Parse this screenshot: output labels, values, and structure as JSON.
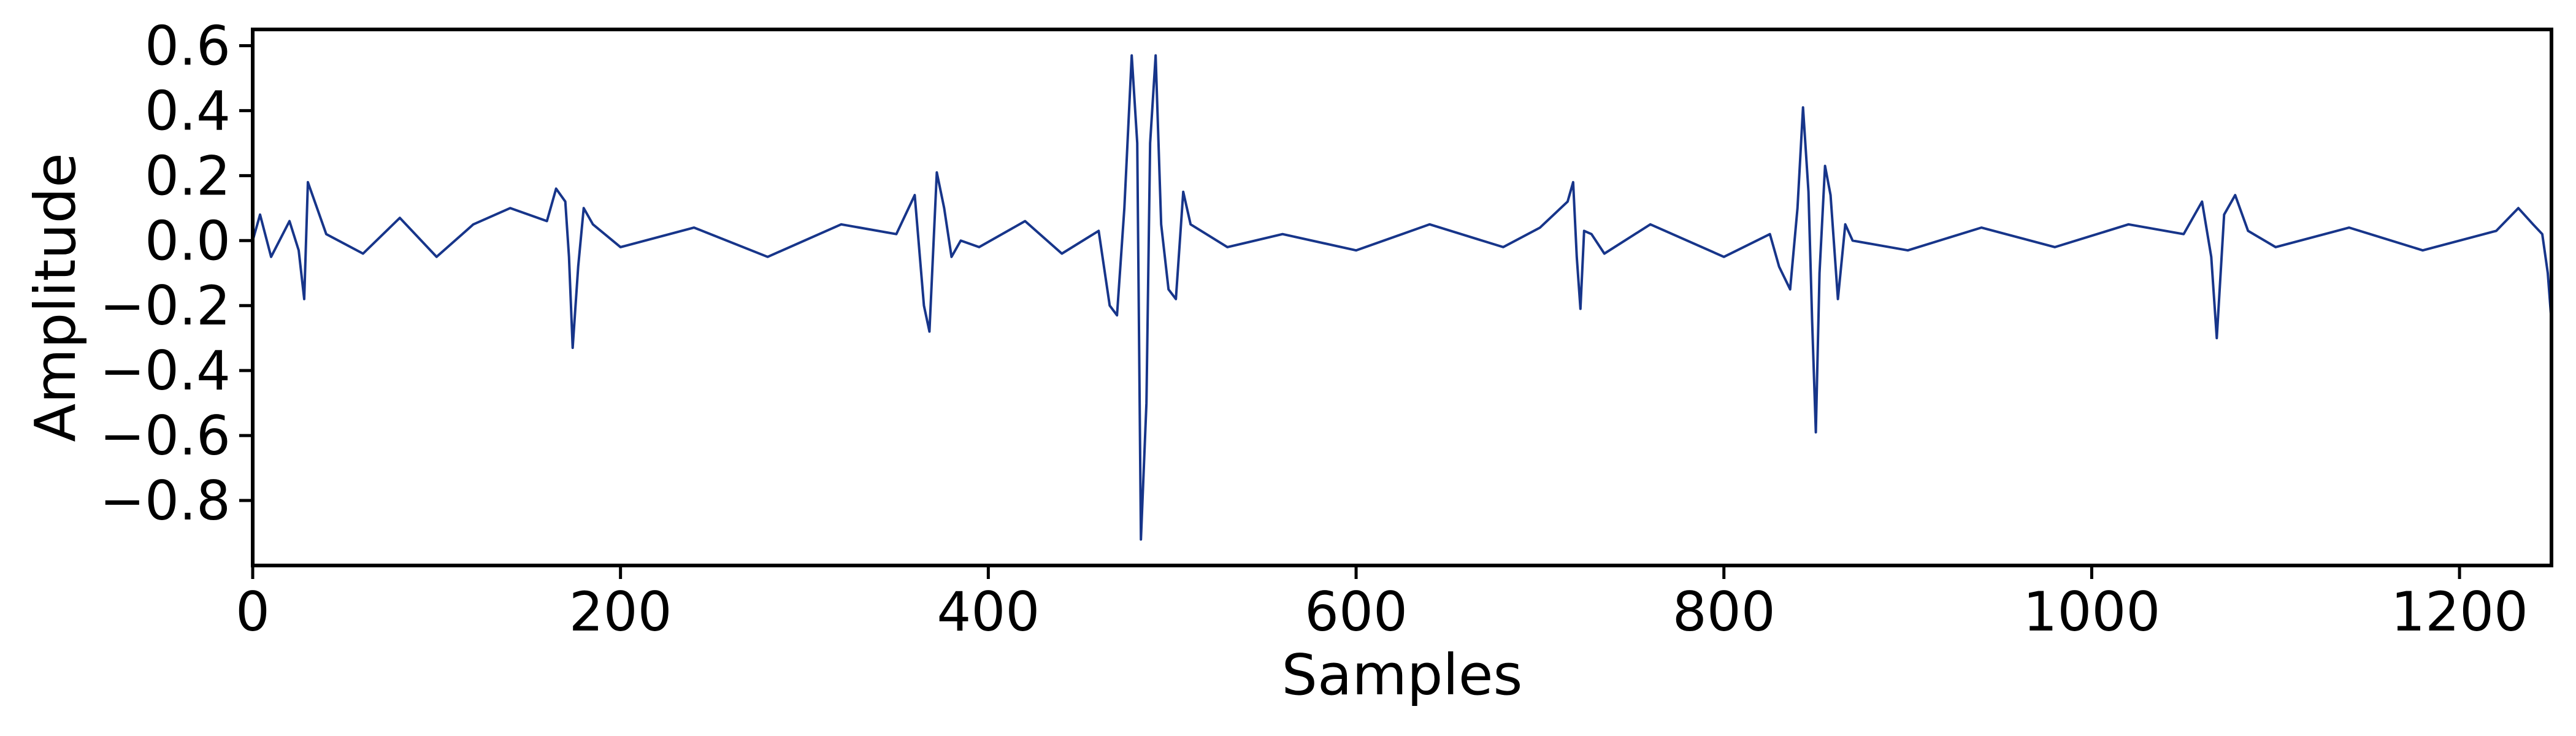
{
  "chart_data": {
    "type": "line",
    "title": "",
    "xlabel": "Samples",
    "ylabel": "Amplitude",
    "xlim": [
      0,
      1250
    ],
    "ylim": [
      -1.0,
      0.65
    ],
    "x_ticks": [
      0,
      200,
      400,
      600,
      800,
      1000,
      1200
    ],
    "x_tick_labels": [
      "0",
      "200",
      "400",
      "600",
      "800",
      "1000",
      "1200"
    ],
    "y_ticks": [
      0.6,
      0.4,
      0.2,
      0.0,
      -0.2,
      -0.4,
      -0.6,
      -0.8
    ],
    "y_tick_labels": [
      "0.6",
      "0.4",
      "0.2",
      "0.0",
      "−0.2",
      "−0.4",
      "−0.6",
      "−0.8"
    ],
    "grid": false,
    "legend": "none",
    "line_color": "#17358a",
    "series": [
      {
        "x": [
          0,
          4,
          10,
          20,
          25,
          28,
          30,
          40,
          60,
          80,
          100,
          120,
          140,
          160,
          165,
          170,
          172,
          174,
          177,
          180,
          185,
          200,
          240,
          280,
          320,
          350,
          360,
          365,
          368,
          372,
          376,
          380,
          385,
          395,
          420,
          440,
          460,
          466,
          470,
          474,
          478,
          481,
          483,
          486,
          488,
          491,
          494,
          498,
          502,
          506,
          510,
          530,
          560,
          600,
          640,
          680,
          700,
          715,
          718,
          720,
          722,
          724,
          728,
          735,
          760,
          800,
          825,
          830,
          836,
          840,
          843,
          846,
          848,
          850,
          852,
          855,
          858,
          862,
          866,
          870,
          900,
          940,
          980,
          1020,
          1050,
          1060,
          1065,
          1068,
          1072,
          1078,
          1085,
          1100,
          1140,
          1180,
          1220,
          1232,
          1240,
          1245,
          1248,
          1250
        ],
        "y": [
          0.0,
          0.08,
          -0.05,
          0.06,
          -0.03,
          -0.18,
          0.18,
          0.02,
          -0.04,
          0.07,
          -0.05,
          0.05,
          0.1,
          0.06,
          0.16,
          0.12,
          -0.05,
          -0.33,
          -0.08,
          0.1,
          0.05,
          -0.02,
          0.04,
          -0.05,
          0.05,
          0.02,
          0.14,
          -0.2,
          -0.28,
          0.21,
          0.1,
          -0.05,
          0.0,
          -0.02,
          0.06,
          -0.04,
          0.03,
          -0.2,
          -0.23,
          0.1,
          0.57,
          0.3,
          -0.92,
          -0.5,
          0.3,
          0.57,
          0.05,
          -0.15,
          -0.18,
          0.15,
          0.05,
          -0.02,
          0.02,
          -0.03,
          0.05,
          -0.02,
          0.04,
          0.12,
          0.18,
          -0.05,
          -0.21,
          0.03,
          0.02,
          -0.04,
          0.05,
          -0.05,
          0.02,
          -0.08,
          -0.15,
          0.1,
          0.41,
          0.15,
          -0.25,
          -0.59,
          -0.1,
          0.23,
          0.14,
          -0.18,
          0.05,
          0.0,
          -0.03,
          0.04,
          -0.02,
          0.05,
          0.02,
          0.12,
          -0.05,
          -0.3,
          0.08,
          0.14,
          0.03,
          -0.02,
          0.04,
          -0.03,
          0.03,
          0.1,
          0.05,
          0.02,
          -0.1,
          -0.25
        ]
      }
    ]
  }
}
